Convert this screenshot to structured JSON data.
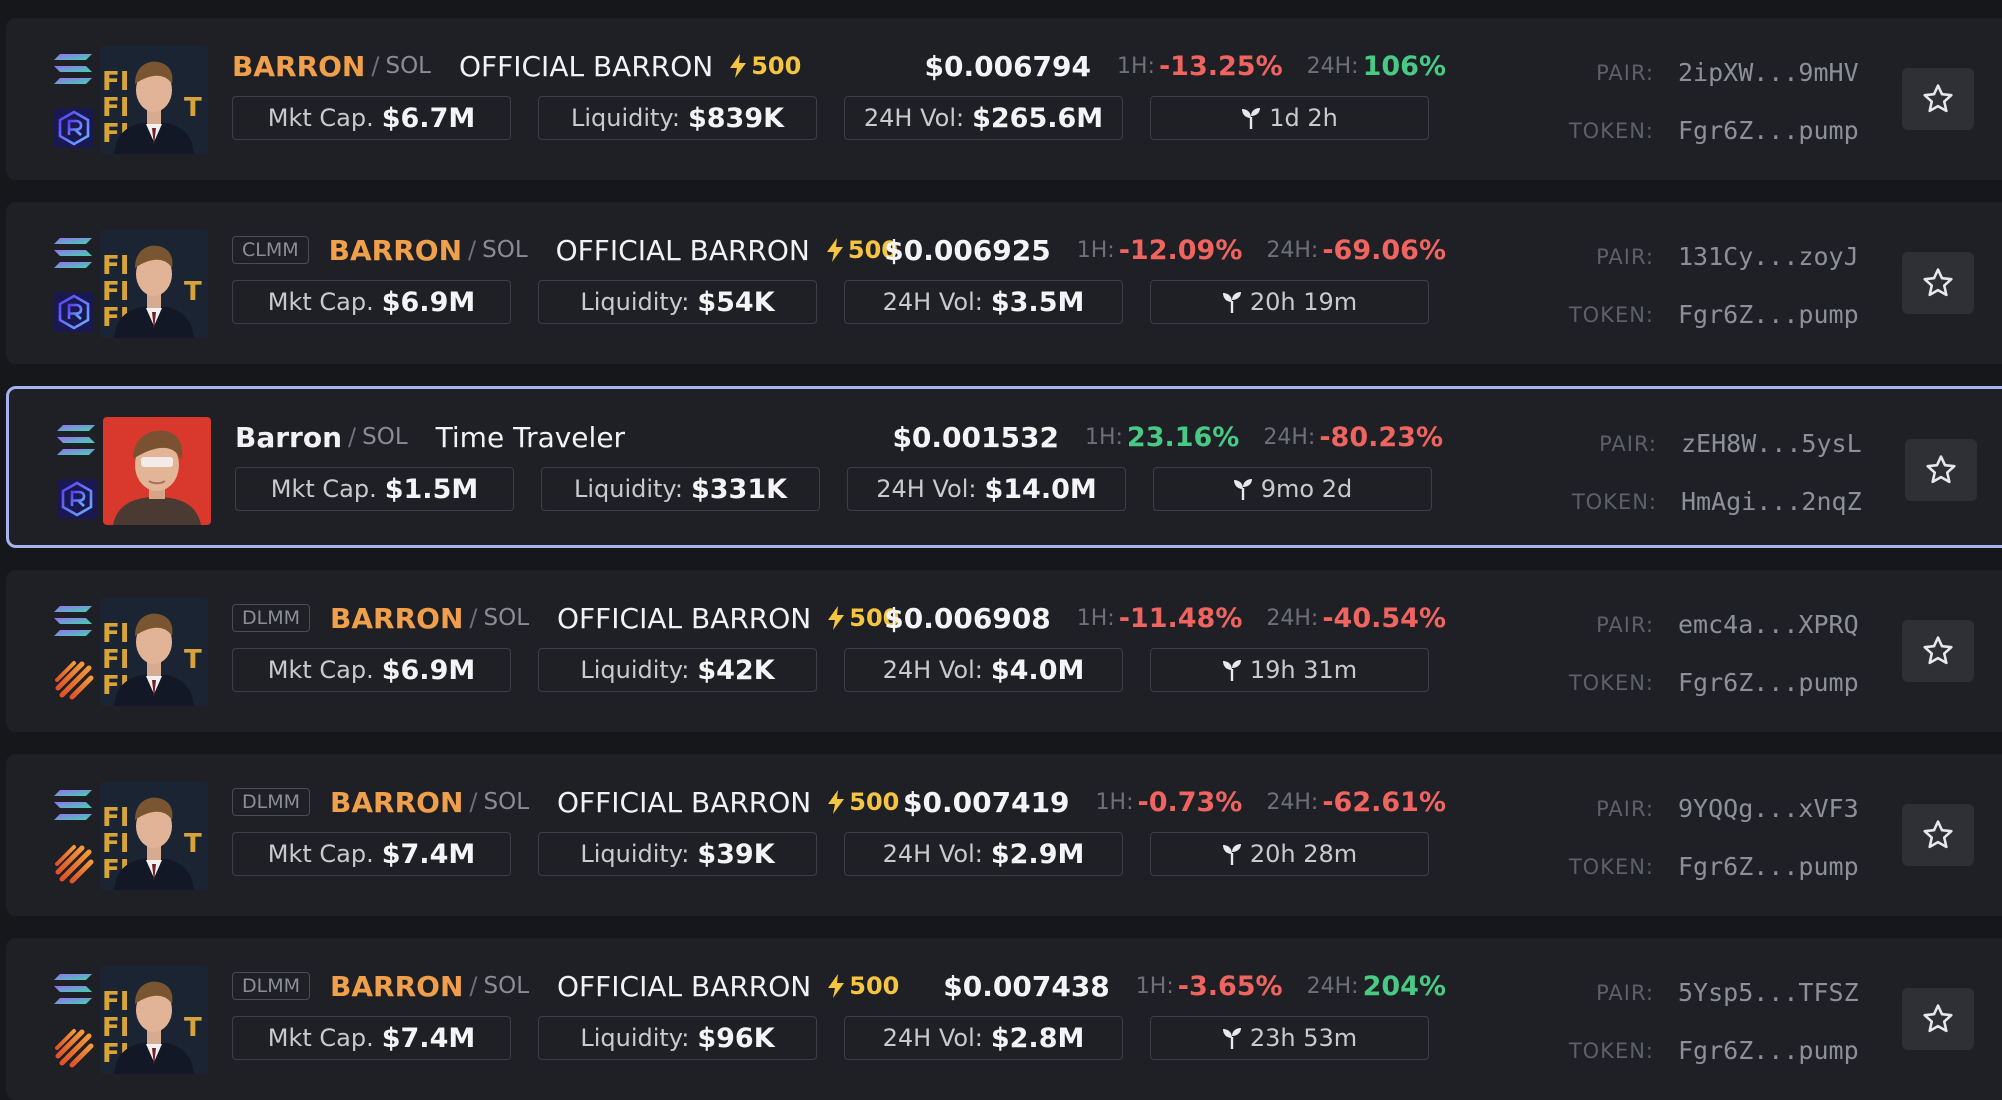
{
  "labels": {
    "mkt_cap": "Mkt Cap.",
    "liquidity": "Liquidity:",
    "vol": "24H Vol:",
    "h1": "1H:",
    "h24": "24H:",
    "pair": "PAIR:",
    "token": "TOKEN:",
    "quote": "SOL"
  },
  "colors": {
    "background": "#16171b",
    "row": "#1f2025",
    "symbol": "#f0a04a",
    "positive": "#48c984",
    "negative": "#f0645f",
    "boost": "#f5c542",
    "selected_border": "#a8b2ee"
  },
  "rows": [
    {
      "badge": "",
      "symbol": "BARRON",
      "name": "OFFICIAL BARRON",
      "boost": "500",
      "price": "$0.006794",
      "change_1h": "-13.25%",
      "change_1h_dir": "neg",
      "change_24h": "106%",
      "change_24h_dir": "pos",
      "mkt_cap": "$6.7M",
      "liquidity": "$839K",
      "vol_24h": "$265.6M",
      "age": "1d 2h",
      "pair": "2ipXW...9mHV",
      "token": "Fgr6Z...pump",
      "dex_icon": "raydium-icon",
      "avatar": "barron-suit-avatar",
      "selected": false
    },
    {
      "badge": "CLMM",
      "symbol": "BARRON",
      "name": "OFFICIAL BARRON",
      "boost": "500",
      "price": "$0.006925",
      "change_1h": "-12.09%",
      "change_1h_dir": "neg",
      "change_24h": "-69.06%",
      "change_24h_dir": "neg",
      "mkt_cap": "$6.9M",
      "liquidity": "$54K",
      "vol_24h": "$3.5M",
      "age": "20h 19m",
      "pair": "131Cy...zoyJ",
      "token": "Fgr6Z...pump",
      "dex_icon": "raydium-icon",
      "avatar": "barron-suit-avatar",
      "selected": false
    },
    {
      "badge": "",
      "symbol": "Barron",
      "name": "Time Traveler",
      "boost": "",
      "price": "$0.001532",
      "change_1h": "23.16%",
      "change_1h_dir": "pos",
      "change_24h": "-80.23%",
      "change_24h_dir": "neg",
      "mkt_cap": "$1.5M",
      "liquidity": "$331K",
      "vol_24h": "$14.0M",
      "age": "9mo 2d",
      "pair": "zEH8W...5ysL",
      "token": "HmAgi...2nqZ",
      "dex_icon": "raydium-icon",
      "avatar": "time-traveler-avatar",
      "selected": true
    },
    {
      "badge": "DLMM",
      "symbol": "BARRON",
      "name": "OFFICIAL BARRON",
      "boost": "500",
      "price": "$0.006908",
      "change_1h": "-11.48%",
      "change_1h_dir": "neg",
      "change_24h": "-40.54%",
      "change_24h_dir": "neg",
      "mkt_cap": "$6.9M",
      "liquidity": "$42K",
      "vol_24h": "$4.0M",
      "age": "19h 31m",
      "pair": "emc4a...XPRQ",
      "token": "Fgr6Z...pump",
      "dex_icon": "meteora-icon",
      "avatar": "barron-suit-avatar",
      "selected": false
    },
    {
      "badge": "DLMM",
      "symbol": "BARRON",
      "name": "OFFICIAL BARRON",
      "boost": "500",
      "price": "$0.007419",
      "change_1h": "-0.73%",
      "change_1h_dir": "neg",
      "change_24h": "-62.61%",
      "change_24h_dir": "neg",
      "mkt_cap": "$7.4M",
      "liquidity": "$39K",
      "vol_24h": "$2.9M",
      "age": "20h 28m",
      "pair": "9YQQg...xVF3",
      "token": "Fgr6Z...pump",
      "dex_icon": "meteora-icon",
      "avatar": "barron-suit-avatar",
      "selected": false
    },
    {
      "badge": "DLMM",
      "symbol": "BARRON",
      "name": "OFFICIAL BARRON",
      "boost": "500",
      "price": "$0.007438",
      "change_1h": "-3.65%",
      "change_1h_dir": "neg",
      "change_24h": "204%",
      "change_24h_dir": "pos",
      "mkt_cap": "$7.4M",
      "liquidity": "$96K",
      "vol_24h": "$2.8M",
      "age": "23h 53m",
      "pair": "5Ysp5...TFSZ",
      "token": "Fgr6Z...pump",
      "dex_icon": "meteora-icon",
      "avatar": "barron-suit-avatar",
      "selected": false
    }
  ]
}
